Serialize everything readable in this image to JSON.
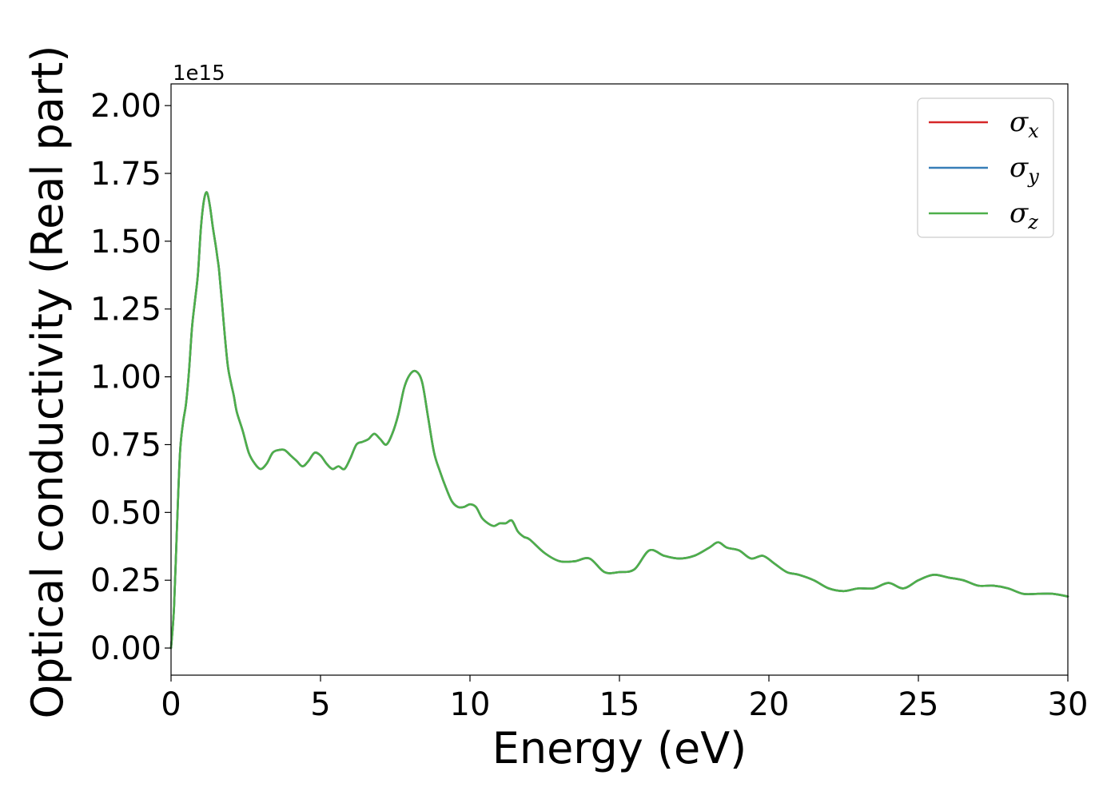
{
  "chart_data": {
    "type": "line",
    "xlabel": "Energy (eV)",
    "ylabel": "Optical conductivity (Real part)",
    "y_offset_label": "1e15",
    "xlim": [
      0,
      30
    ],
    "ylim": [
      -0.1,
      2.08
    ],
    "x_ticks": [
      0,
      5,
      10,
      15,
      20,
      25,
      30
    ],
    "x_tick_labels": [
      "0",
      "5",
      "10",
      "15",
      "20",
      "25",
      "30"
    ],
    "y_ticks": [
      0,
      0.25,
      0.5,
      0.75,
      1.0,
      1.25,
      1.5,
      1.75,
      2.0
    ],
    "y_tick_labels": [
      "0.00",
      "0.25",
      "0.50",
      "0.75",
      "1.00",
      "1.25",
      "1.50",
      "1.75",
      "2.00"
    ],
    "grid": false,
    "legend_position": "top-right",
    "x": [
      0,
      0.1,
      0.2,
      0.3,
      0.4,
      0.5,
      0.6,
      0.7,
      0.8,
      0.9,
      1.0,
      1.1,
      1.2,
      1.3,
      1.4,
      1.5,
      1.55,
      1.6,
      1.65,
      1.7,
      1.8,
      1.9,
      2.0,
      2.1,
      2.2,
      2.4,
      2.6,
      2.8,
      3.0,
      3.2,
      3.4,
      3.6,
      3.8,
      4.0,
      4.2,
      4.4,
      4.6,
      4.8,
      5.0,
      5.2,
      5.4,
      5.6,
      5.8,
      6.0,
      6.2,
      6.4,
      6.6,
      6.8,
      7.0,
      7.2,
      7.4,
      7.6,
      7.8,
      8.0,
      8.2,
      8.4,
      8.6,
      8.8,
      9.0,
      9.2,
      9.4,
      9.6,
      9.8,
      10.0,
      10.2,
      10.4,
      10.6,
      10.8,
      11.0,
      11.2,
      11.4,
      11.6,
      11.8,
      12.0,
      12.5,
      13.0,
      13.5,
      14.0,
      14.5,
      15.0,
      15.5,
      16.0,
      16.5,
      17.0,
      17.5,
      18.0,
      18.3,
      18.6,
      19.0,
      19.4,
      19.8,
      20.2,
      20.6,
      21.0,
      21.5,
      22.0,
      22.5,
      23.0,
      23.5,
      24.0,
      24.5,
      25.0,
      25.5,
      26.0,
      26.5,
      27.0,
      27.5,
      28.0,
      28.5,
      29.0,
      29.5,
      30.0
    ],
    "series": [
      {
        "name": "σx",
        "color": "#d62728",
        "values": [
          0.0,
          0.15,
          0.45,
          0.72,
          0.83,
          0.9,
          1.02,
          1.18,
          1.28,
          1.38,
          1.55,
          1.65,
          1.68,
          1.63,
          1.55,
          1.48,
          1.44,
          1.4,
          1.34,
          1.28,
          1.15,
          1.04,
          0.98,
          0.93,
          0.87,
          0.8,
          0.72,
          0.68,
          0.66,
          0.68,
          0.72,
          0.73,
          0.73,
          0.71,
          0.69,
          0.67,
          0.69,
          0.72,
          0.71,
          0.68,
          0.66,
          0.67,
          0.66,
          0.7,
          0.75,
          0.76,
          0.77,
          0.79,
          0.77,
          0.75,
          0.79,
          0.86,
          0.96,
          1.01,
          1.02,
          0.98,
          0.85,
          0.72,
          0.65,
          0.59,
          0.54,
          0.52,
          0.52,
          0.53,
          0.52,
          0.48,
          0.46,
          0.45,
          0.46,
          0.46,
          0.47,
          0.43,
          0.41,
          0.4,
          0.35,
          0.32,
          0.32,
          0.33,
          0.28,
          0.28,
          0.29,
          0.36,
          0.34,
          0.33,
          0.34,
          0.37,
          0.39,
          0.37,
          0.36,
          0.33,
          0.34,
          0.31,
          0.28,
          0.27,
          0.25,
          0.22,
          0.21,
          0.22,
          0.22,
          0.24,
          0.22,
          0.25,
          0.27,
          0.26,
          0.25,
          0.23,
          0.23,
          0.22,
          0.2,
          0.2,
          0.2,
          0.19
        ]
      },
      {
        "name": "σy",
        "color": "#377eb8",
        "values": [
          0.0,
          0.15,
          0.45,
          0.72,
          0.83,
          0.9,
          1.02,
          1.18,
          1.28,
          1.38,
          1.55,
          1.65,
          1.68,
          1.63,
          1.55,
          1.48,
          1.44,
          1.4,
          1.34,
          1.28,
          1.15,
          1.04,
          0.98,
          0.93,
          0.87,
          0.8,
          0.72,
          0.68,
          0.66,
          0.68,
          0.72,
          0.73,
          0.73,
          0.71,
          0.69,
          0.67,
          0.69,
          0.72,
          0.71,
          0.68,
          0.66,
          0.67,
          0.66,
          0.7,
          0.75,
          0.76,
          0.77,
          0.79,
          0.77,
          0.75,
          0.79,
          0.86,
          0.96,
          1.01,
          1.02,
          0.98,
          0.85,
          0.72,
          0.65,
          0.59,
          0.54,
          0.52,
          0.52,
          0.53,
          0.52,
          0.48,
          0.46,
          0.45,
          0.46,
          0.46,
          0.47,
          0.43,
          0.41,
          0.4,
          0.35,
          0.32,
          0.32,
          0.33,
          0.28,
          0.28,
          0.29,
          0.36,
          0.34,
          0.33,
          0.34,
          0.37,
          0.39,
          0.37,
          0.36,
          0.33,
          0.34,
          0.31,
          0.28,
          0.27,
          0.25,
          0.22,
          0.21,
          0.22,
          0.22,
          0.24,
          0.22,
          0.25,
          0.27,
          0.26,
          0.25,
          0.23,
          0.23,
          0.22,
          0.2,
          0.2,
          0.2,
          0.19
        ]
      },
      {
        "name": "σz",
        "color": "#4daf4a",
        "values": [
          0.0,
          0.15,
          0.45,
          0.72,
          0.83,
          0.9,
          1.02,
          1.18,
          1.28,
          1.38,
          1.55,
          1.65,
          1.68,
          1.63,
          1.55,
          1.48,
          1.44,
          1.4,
          1.34,
          1.28,
          1.15,
          1.04,
          0.98,
          0.93,
          0.87,
          0.8,
          0.72,
          0.68,
          0.66,
          0.68,
          0.72,
          0.73,
          0.73,
          0.71,
          0.69,
          0.67,
          0.69,
          0.72,
          0.71,
          0.68,
          0.66,
          0.67,
          0.66,
          0.7,
          0.75,
          0.76,
          0.77,
          0.79,
          0.77,
          0.75,
          0.79,
          0.86,
          0.96,
          1.01,
          1.02,
          0.98,
          0.85,
          0.72,
          0.65,
          0.59,
          0.54,
          0.52,
          0.52,
          0.53,
          0.52,
          0.48,
          0.46,
          0.45,
          0.46,
          0.46,
          0.47,
          0.43,
          0.41,
          0.4,
          0.35,
          0.32,
          0.32,
          0.33,
          0.28,
          0.28,
          0.29,
          0.36,
          0.34,
          0.33,
          0.34,
          0.37,
          0.39,
          0.37,
          0.36,
          0.33,
          0.34,
          0.31,
          0.28,
          0.27,
          0.25,
          0.22,
          0.21,
          0.22,
          0.22,
          0.24,
          0.22,
          0.25,
          0.27,
          0.26,
          0.25,
          0.23,
          0.23,
          0.22,
          0.2,
          0.2,
          0.2,
          0.19
        ]
      }
    ],
    "legend": [
      {
        "base": "σ",
        "sub": "x",
        "color": "#d62728"
      },
      {
        "base": "σ",
        "sub": "y",
        "color": "#377eb8"
      },
      {
        "base": "σ",
        "sub": "z",
        "color": "#4daf4a"
      }
    ]
  }
}
